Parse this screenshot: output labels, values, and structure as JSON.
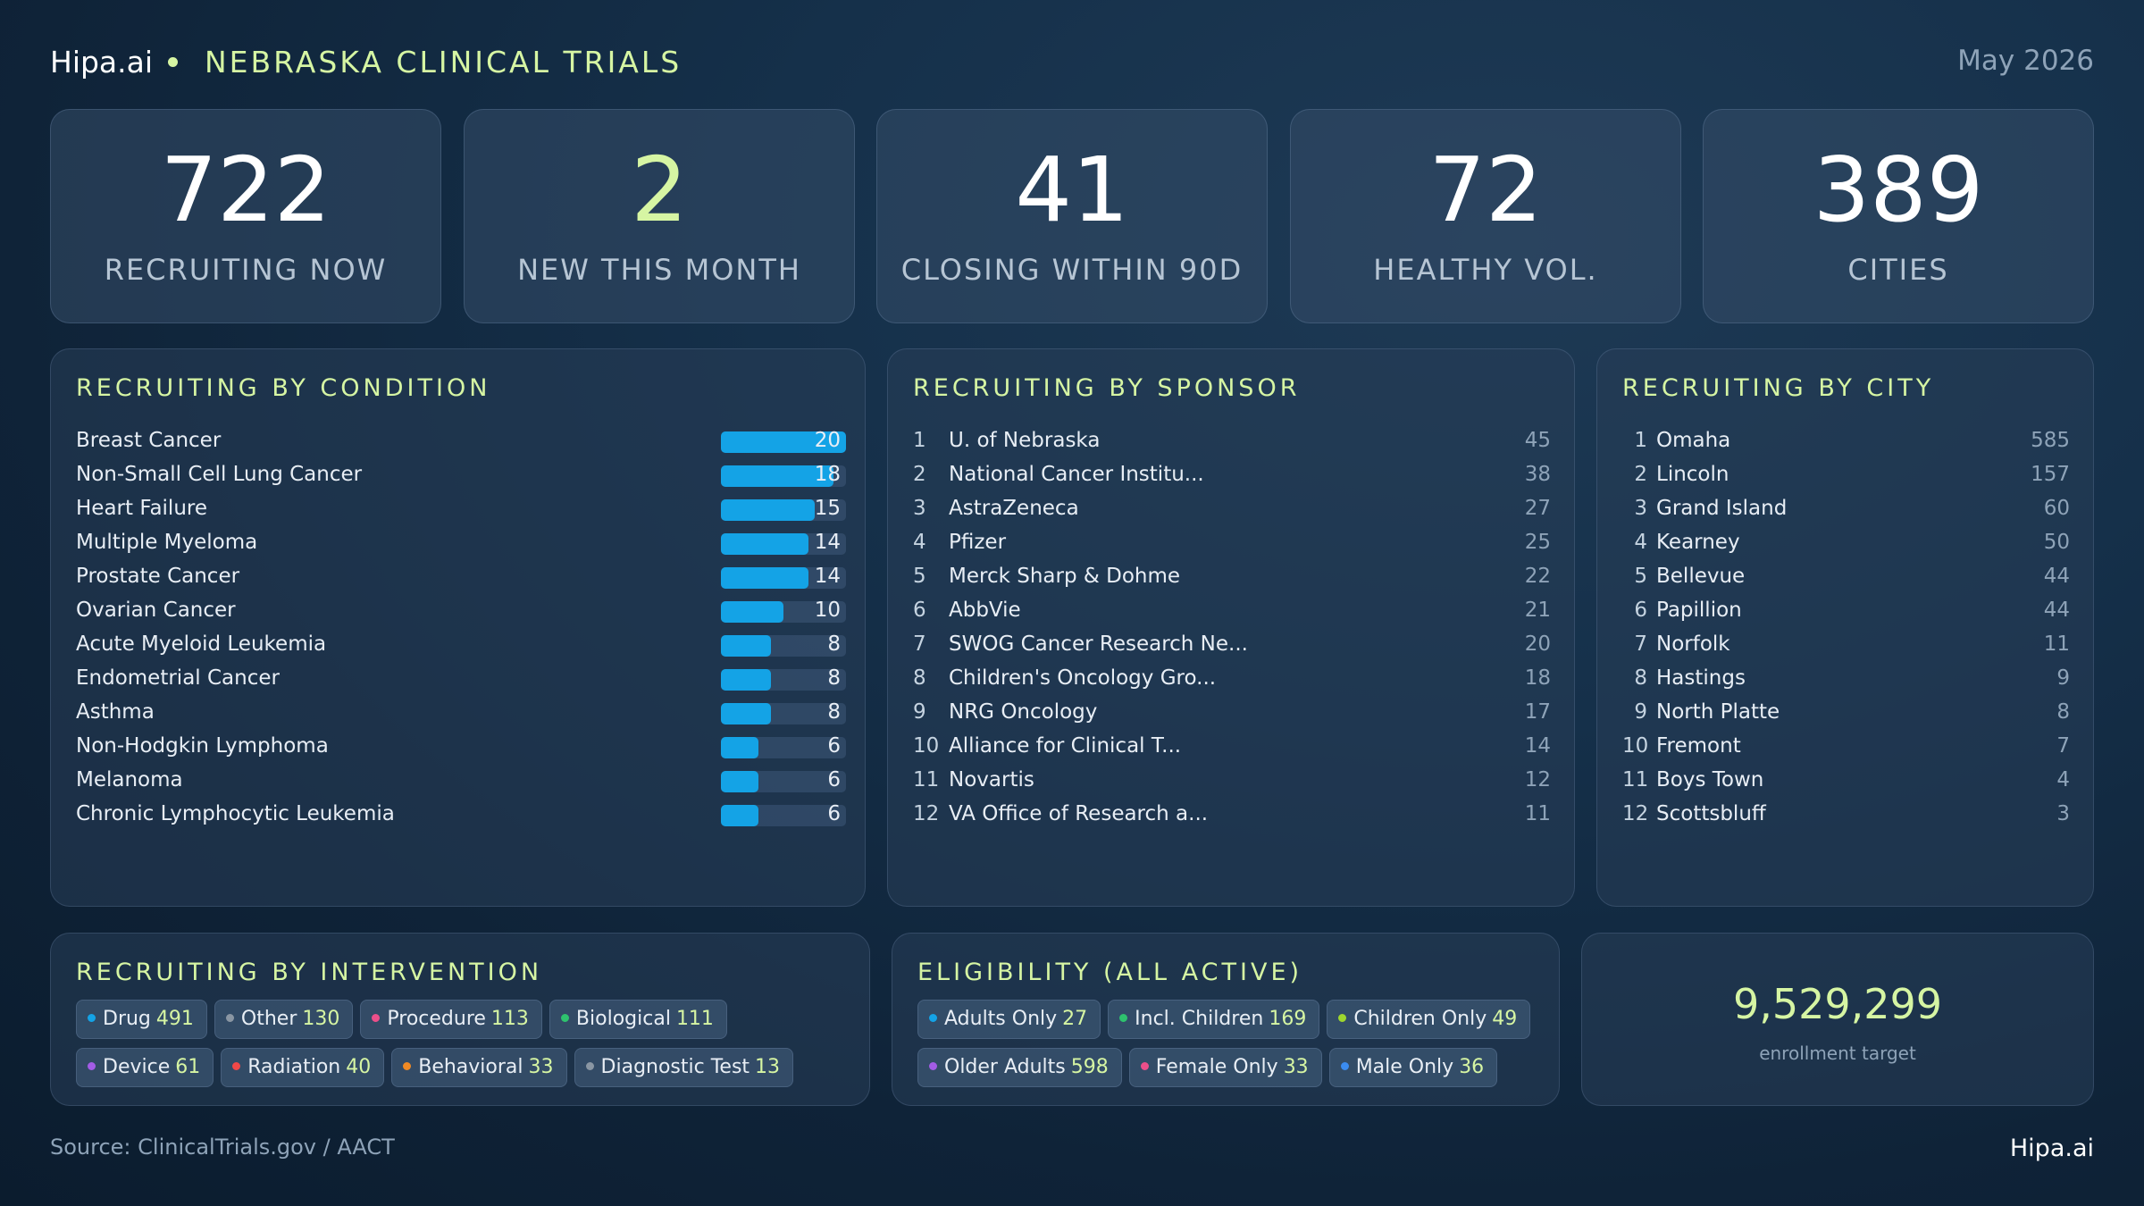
{
  "header": {
    "brand": "Hipa.ai",
    "title": "NEBRASKA CLINICAL TRIALS",
    "date": "May 2026"
  },
  "kpis": [
    {
      "value": "722",
      "label": "RECRUITING NOW"
    },
    {
      "value": "2",
      "label": "NEW THIS MONTH"
    },
    {
      "value": "41",
      "label": "CLOSING WITHIN 90D"
    },
    {
      "value": "72",
      "label": "HEALTHY VOL."
    },
    {
      "value": "389",
      "label": "CITIES"
    }
  ],
  "condition": {
    "title": "RECRUITING BY CONDITION",
    "bar_color": "#14a3e6",
    "max": 20,
    "items": [
      {
        "name": "Breast Cancer",
        "value": 20
      },
      {
        "name": "Non-Small Cell Lung Cancer",
        "value": 18
      },
      {
        "name": "Heart Failure",
        "value": 15
      },
      {
        "name": "Multiple Myeloma",
        "value": 14
      },
      {
        "name": "Prostate Cancer",
        "value": 14
      },
      {
        "name": "Ovarian Cancer",
        "value": 10
      },
      {
        "name": "Acute Myeloid Leukemia",
        "value": 8
      },
      {
        "name": "Endometrial Cancer",
        "value": 8
      },
      {
        "name": "Asthma",
        "value": 8
      },
      {
        "name": "Non-Hodgkin Lymphoma",
        "value": 6
      },
      {
        "name": "Melanoma",
        "value": 6
      },
      {
        "name": "Chronic Lymphocytic Leukemia",
        "value": 6
      }
    ]
  },
  "sponsor": {
    "title": "RECRUITING BY SPONSOR",
    "items": [
      {
        "rank": "1",
        "name": "U. of Nebraska",
        "value": "45"
      },
      {
        "rank": "2",
        "name": "National Cancer Institu...",
        "value": "38"
      },
      {
        "rank": "3",
        "name": "AstraZeneca",
        "value": "27"
      },
      {
        "rank": "4",
        "name": "Pfizer",
        "value": "25"
      },
      {
        "rank": "5",
        "name": "Merck Sharp & Dohme",
        "value": "22"
      },
      {
        "rank": "6",
        "name": "AbbVie",
        "value": "21"
      },
      {
        "rank": "7",
        "name": "SWOG Cancer Research Ne...",
        "value": "20"
      },
      {
        "rank": "8",
        "name": "Children's Oncology Gro...",
        "value": "18"
      },
      {
        "rank": "9",
        "name": "NRG Oncology",
        "value": "17"
      },
      {
        "rank": "10",
        "name": "Alliance for Clinical T...",
        "value": "14"
      },
      {
        "rank": "11",
        "name": "Novartis",
        "value": "12"
      },
      {
        "rank": "12",
        "name": "VA Office of Research a...",
        "value": "11"
      }
    ]
  },
  "city": {
    "title": "RECRUITING BY CITY",
    "items": [
      {
        "rank": "1",
        "name": "Omaha",
        "value": "585"
      },
      {
        "rank": "2",
        "name": "Lincoln",
        "value": "157"
      },
      {
        "rank": "3",
        "name": "Grand Island",
        "value": "60"
      },
      {
        "rank": "4",
        "name": "Kearney",
        "value": "50"
      },
      {
        "rank": "5",
        "name": "Bellevue",
        "value": "44"
      },
      {
        "rank": "6",
        "name": "Papillion",
        "value": "44"
      },
      {
        "rank": "7",
        "name": "Norfolk",
        "value": "11"
      },
      {
        "rank": "8",
        "name": "Hastings",
        "value": "9"
      },
      {
        "rank": "9",
        "name": "North Platte",
        "value": "8"
      },
      {
        "rank": "10",
        "name": "Fremont",
        "value": "7"
      },
      {
        "rank": "11",
        "name": "Boys Town",
        "value": "4"
      },
      {
        "rank": "12",
        "name": "Scottsbluff",
        "value": "3"
      }
    ]
  },
  "intervention": {
    "title": "RECRUITING BY INTERVENTION",
    "chips": [
      {
        "label": "Drug",
        "value": "491",
        "color": "#14a3e6"
      },
      {
        "label": "Other",
        "value": "130",
        "color": "#8a96a3"
      },
      {
        "label": "Procedure",
        "value": "113",
        "color": "#ec4f8a"
      },
      {
        "label": "Biological",
        "value": "111",
        "color": "#2ec26e"
      },
      {
        "label": "Device",
        "value": "61",
        "color": "#a35ce6"
      },
      {
        "label": "Radiation",
        "value": "40",
        "color": "#f04848"
      },
      {
        "label": "Behavioral",
        "value": "33",
        "color": "#f08a24"
      },
      {
        "label": "Diagnostic Test",
        "value": "13",
        "color": "#8a96a3"
      }
    ]
  },
  "eligibility": {
    "title": "ELIGIBILITY (ALL ACTIVE)",
    "chips": [
      {
        "label": "Adults Only",
        "value": "27",
        "color": "#14a3e6"
      },
      {
        "label": "Incl. Children",
        "value": "169",
        "color": "#2ec26e"
      },
      {
        "label": "Children Only",
        "value": "49",
        "color": "#9ed62e"
      },
      {
        "label": "Older Adults",
        "value": "598",
        "color": "#a35ce6"
      },
      {
        "label": "Female Only",
        "value": "33",
        "color": "#ec4f8a"
      },
      {
        "label": "Male Only",
        "value": "36",
        "color": "#3b8cf0"
      }
    ]
  },
  "target": {
    "value": "9,529,299",
    "label": "enrollment target"
  },
  "footer": {
    "source": "Source: ClinicalTrials.gov / AACT",
    "brand": "Hipa.ai"
  }
}
